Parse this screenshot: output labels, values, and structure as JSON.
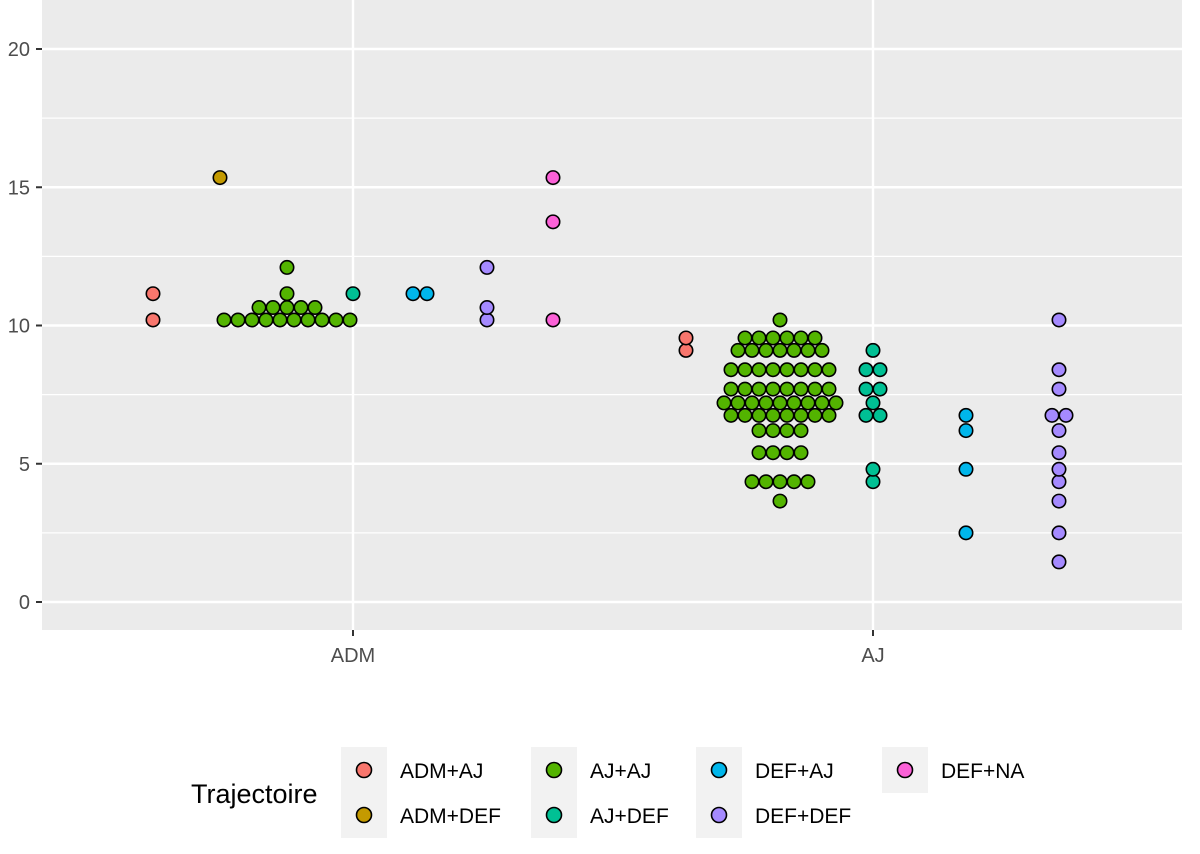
{
  "chart_data": {
    "type": "scatter",
    "subtype": "dotplot-beeswarm",
    "title": "",
    "xlabel": "",
    "ylabel": "",
    "ylim": [
      -1,
      21
    ],
    "y_ticks": [
      0,
      5,
      10,
      15,
      20
    ],
    "x_ticks": [
      "ADM",
      "AJ"
    ],
    "grid": true,
    "legend": {
      "title": "Trajectoire",
      "position": "bottom",
      "entries": [
        "ADM+AJ",
        "ADM+DEF",
        "AJ+AJ",
        "AJ+DEF",
        "DEF+AJ",
        "DEF+DEF",
        "DEF+NA"
      ]
    },
    "colors": {
      "ADM+AJ": "#F8766D",
      "ADM+DEF": "#C49A00",
      "AJ+AJ": "#53B400",
      "AJ+DEF": "#00C094",
      "DEF+AJ": "#00B6EB",
      "DEF+DEF": "#A58AFF",
      "DEF+NA": "#FB61D7"
    },
    "series": [
      {
        "name": "ADM+AJ",
        "group": "ADM",
        "values": [
          10.2,
          11.15
        ]
      },
      {
        "name": "ADM+DEF",
        "group": "ADM",
        "values": [
          15.35
        ]
      },
      {
        "name": "AJ+AJ",
        "group": "ADM",
        "values": [
          10.2,
          10.2,
          10.2,
          10.2,
          10.2,
          10.2,
          10.2,
          10.2,
          10.2,
          10.2,
          10.65,
          10.65,
          10.65,
          10.65,
          10.65,
          11.15,
          12.1
        ]
      },
      {
        "name": "AJ+DEF",
        "group": "ADM",
        "values": [
          11.15
        ]
      },
      {
        "name": "DEF+AJ",
        "group": "ADM",
        "values": [
          11.15,
          11.15
        ]
      },
      {
        "name": "DEF+DEF",
        "group": "ADM",
        "values": [
          10.2,
          10.65,
          12.1
        ]
      },
      {
        "name": "DEF+NA",
        "group": "ADM",
        "values": [
          10.2,
          13.75,
          15.35
        ]
      },
      {
        "name": "ADM+AJ",
        "group": "AJ",
        "values": [
          9.1,
          9.55
        ]
      },
      {
        "name": "AJ+AJ",
        "group": "AJ",
        "values": [
          3.65,
          4.35,
          4.35,
          4.35,
          4.35,
          4.35,
          5.4,
          5.4,
          5.4,
          5.4,
          6.2,
          6.2,
          6.2,
          6.2,
          6.75,
          6.75,
          6.75,
          6.75,
          6.75,
          6.75,
          6.75,
          6.75,
          7.2,
          7.2,
          7.2,
          7.2,
          7.2,
          7.2,
          7.2,
          7.2,
          7.2,
          7.7,
          7.7,
          7.7,
          7.7,
          7.7,
          7.7,
          7.7,
          7.7,
          8.4,
          8.4,
          8.4,
          8.4,
          8.4,
          8.4,
          8.4,
          8.4,
          9.1,
          9.1,
          9.1,
          9.1,
          9.1,
          9.1,
          9.1,
          9.55,
          9.55,
          9.55,
          9.55,
          9.55,
          9.55,
          10.2
        ]
      },
      {
        "name": "AJ+DEF",
        "group": "AJ",
        "values": [
          4.35,
          4.8,
          6.75,
          6.75,
          7.2,
          7.7,
          7.7,
          8.4,
          8.4,
          9.1
        ]
      },
      {
        "name": "DEF+AJ",
        "group": "AJ",
        "values": [
          2.5,
          4.8,
          6.2,
          6.75
        ]
      },
      {
        "name": "DEF+DEF",
        "group": "AJ",
        "values": [
          1.45,
          2.5,
          3.65,
          4.35,
          4.8,
          5.4,
          6.2,
          6.75,
          6.75,
          7.7,
          8.4,
          10.2
        ]
      }
    ]
  }
}
